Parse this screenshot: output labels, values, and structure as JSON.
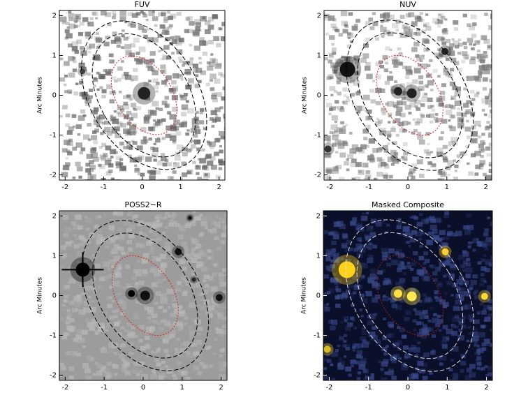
{
  "chart_data": [
    {
      "type": "image",
      "title": "FUV",
      "ylabel": "Arc Minutes",
      "xlim": [
        -2.15,
        2.15
      ],
      "ylim": [
        -2.13,
        2.13
      ],
      "xticks": [
        -2,
        -1,
        0,
        1,
        2
      ],
      "yticks": [
        -2,
        -1,
        0,
        1,
        2
      ],
      "background": "#ffffff",
      "color": "#666666"
    },
    {
      "type": "image",
      "title": "NUV",
      "ylabel": "Arc Minutes",
      "xlim": [
        -2.15,
        2.15
      ],
      "ylim": [
        -2.13,
        2.13
      ],
      "xticks": [
        -2,
        -1,
        0,
        1,
        2
      ],
      "yticks": [
        -2,
        -1,
        0,
        1,
        2
      ],
      "background": "#ffffff",
      "color": "#777777"
    },
    {
      "type": "image",
      "title": "POSS2−R",
      "ylabel": "Arc Minutes",
      "xlim": [
        -2.15,
        2.15
      ],
      "ylim": [
        -2.13,
        2.13
      ],
      "xticks": [
        -2,
        -1,
        0,
        1,
        2
      ],
      "yticks": [
        -2,
        -1,
        0,
        1,
        2
      ],
      "background": "#9c9c9c",
      "color": "#b8b8b8"
    },
    {
      "type": "image",
      "title": "Masked Composite",
      "ylabel": "Arc Minutes",
      "xlim": [
        -2.15,
        2.15
      ],
      "ylim": [
        -2.13,
        2.13
      ],
      "xticks": [
        -2,
        -1,
        0,
        1,
        2
      ],
      "yticks": [
        -2,
        -1,
        0,
        1,
        2
      ],
      "background": "#0a0f2a",
      "color": "#3a4a8a"
    }
  ]
}
